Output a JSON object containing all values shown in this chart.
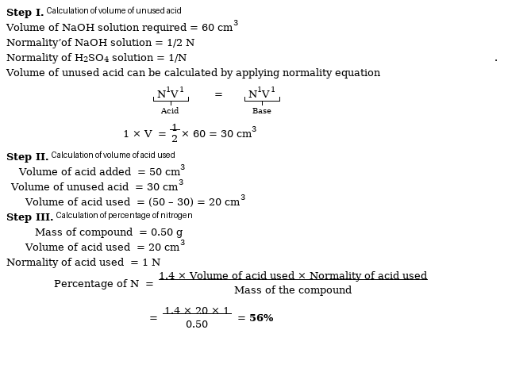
{
  "bg_color": "#ffffff",
  "fig_width": 6.69,
  "fig_height": 4.69,
  "dpi": 100
}
